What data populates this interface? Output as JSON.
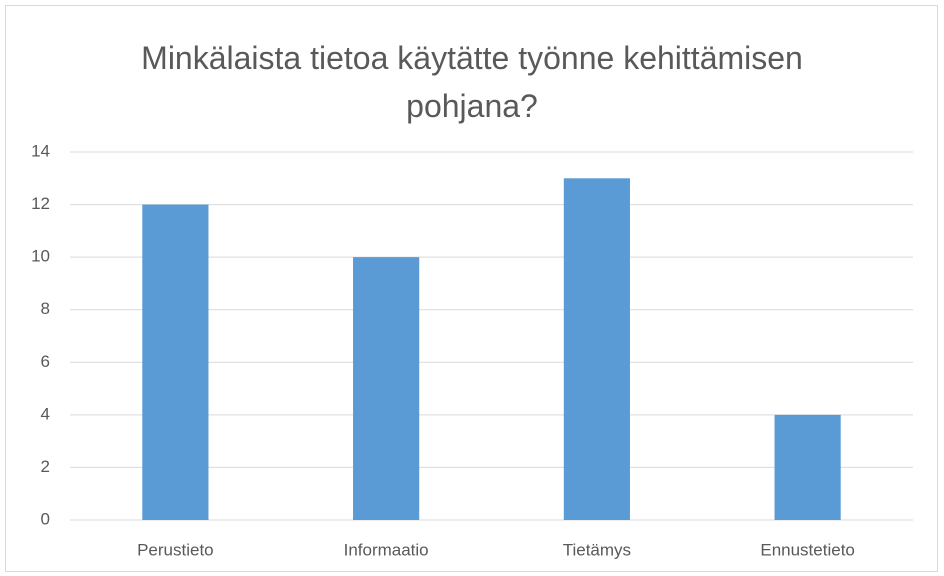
{
  "chart_data": {
    "type": "bar",
    "title": "Minkälaista tietoa käytätte työnne kehittämisen pohjana?",
    "categories": [
      "Perustieto",
      "Informaatio",
      "Tietämys",
      "Ennustetieto"
    ],
    "values": [
      12,
      10,
      13,
      4
    ],
    "color": "#5b9bd5",
    "ylim": [
      0,
      14
    ],
    "yticks": [
      0,
      2,
      4,
      6,
      8,
      10,
      12,
      14
    ],
    "grid": true
  }
}
